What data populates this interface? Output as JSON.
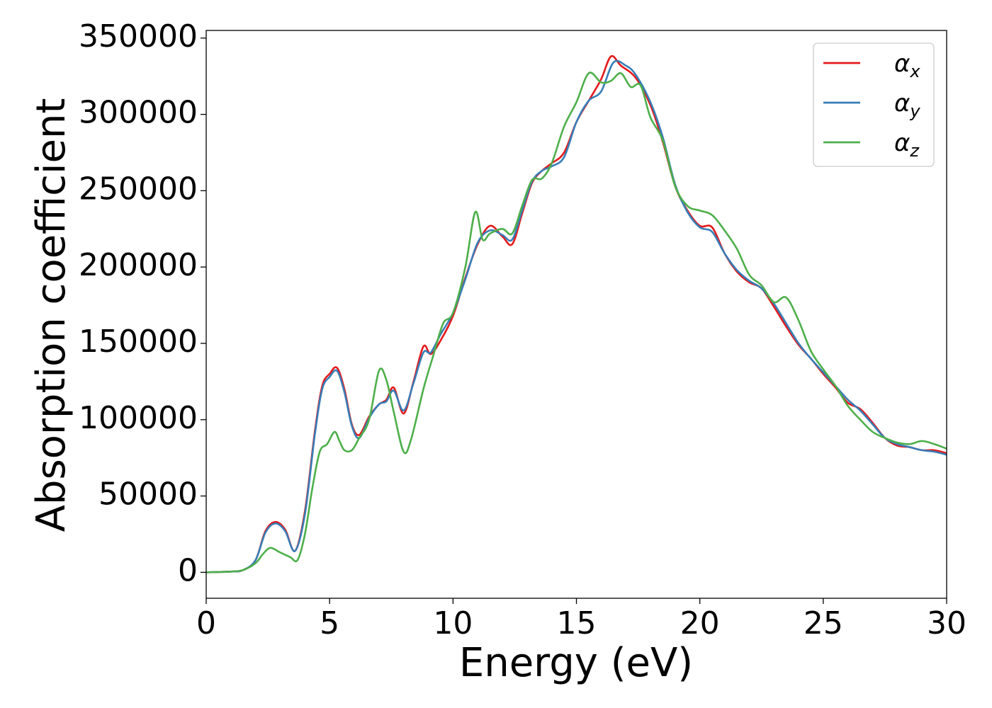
{
  "chart_data": {
    "type": "line",
    "title": "",
    "xlabel": "Energy (eV)",
    "ylabel": "Absorption coefficient",
    "xlim": [
      0,
      30
    ],
    "ylim": [
      -17000,
      355000
    ],
    "xticks": [
      0,
      5,
      10,
      15,
      20,
      25,
      30
    ],
    "xtick_labels": [
      "0",
      "5",
      "10",
      "15",
      "20",
      "25",
      "30"
    ],
    "yticks": [
      0,
      50000,
      100000,
      150000,
      200000,
      250000,
      300000,
      350000
    ],
    "ytick_labels": [
      "0",
      "50000",
      "100000",
      "150000",
      "200000",
      "250000",
      "300000",
      "350000"
    ],
    "grid": false,
    "legend_position": "top-right",
    "series": [
      {
        "name": "α_x",
        "legend_base": "α",
        "legend_sub": "x",
        "color": "#e41a1c",
        "x": [
          0,
          1,
          1.5,
          2,
          2.4,
          2.8,
          3.2,
          3.6,
          4.0,
          4.4,
          4.7,
          5.0,
          5.3,
          5.6,
          5.9,
          6.2,
          6.6,
          7.0,
          7.3,
          7.6,
          8.0,
          8.4,
          8.8,
          9.1,
          9.5,
          10.0,
          10.5,
          11.0,
          11.5,
          12.0,
          12.4,
          12.8,
          13.2,
          13.6,
          14.0,
          14.5,
          15.0,
          15.5,
          16.0,
          16.4,
          16.8,
          17.4,
          18.0,
          18.5,
          19.0,
          19.5,
          20.0,
          20.5,
          21.0,
          21.5,
          22.0,
          22.5,
          23.0,
          23.5,
          24.0,
          24.5,
          25.0,
          25.5,
          26.0,
          26.5,
          27.0,
          27.5,
          28.0,
          28.5,
          29.0,
          29.5,
          30.0
        ],
        "y": [
          0,
          500,
          1500,
          8000,
          27000,
          33000,
          28000,
          14000,
          40000,
          92000,
          122000,
          130000,
          134000,
          120000,
          97000,
          90000,
          102000,
          110000,
          113000,
          121000,
          104000,
          125000,
          148000,
          143000,
          152000,
          168000,
          193000,
          215000,
          227000,
          220000,
          215000,
          235000,
          255000,
          263000,
          268000,
          275000,
          295000,
          309000,
          323000,
          338000,
          332000,
          324000,
          306000,
          282000,
          253000,
          237000,
          227000,
          226000,
          209000,
          197000,
          190000,
          186000,
          174000,
          161000,
          149000,
          140000,
          130000,
          121000,
          111000,
          107000,
          98000,
          88000,
          83000,
          82000,
          80000,
          80000,
          78000
        ]
      },
      {
        "name": "α_y",
        "legend_base": "α",
        "legend_sub": "y",
        "color": "#377eb8",
        "x": [
          0,
          1,
          1.5,
          2,
          2.4,
          2.8,
          3.2,
          3.6,
          4.0,
          4.4,
          4.7,
          5.0,
          5.3,
          5.6,
          5.9,
          6.2,
          6.6,
          7.0,
          7.3,
          7.6,
          8.0,
          8.4,
          8.8,
          9.1,
          9.5,
          10.0,
          10.5,
          11.0,
          11.5,
          12.0,
          12.4,
          12.8,
          13.2,
          13.6,
          14.0,
          14.5,
          15.0,
          15.5,
          16.0,
          16.5,
          17.0,
          17.4,
          18.0,
          18.5,
          19.0,
          19.5,
          20.0,
          20.5,
          21.0,
          21.5,
          22.0,
          22.5,
          23.0,
          23.5,
          24.0,
          24.5,
          25.0,
          25.5,
          26.0,
          26.5,
          27.0,
          27.5,
          28.0,
          28.5,
          29.0,
          29.5,
          30.0
        ],
        "y": [
          0,
          500,
          1500,
          8000,
          26000,
          32000,
          27000,
          14000,
          38000,
          90000,
          120000,
          128000,
          132000,
          118000,
          96000,
          88000,
          101000,
          110000,
          112000,
          119000,
          106000,
          124000,
          144000,
          144000,
          156000,
          170000,
          192000,
          216000,
          224000,
          221000,
          218000,
          237000,
          256000,
          263000,
          266000,
          272000,
          295000,
          309000,
          315000,
          334000,
          332000,
          326000,
          308000,
          285000,
          254000,
          236000,
          226000,
          223000,
          209000,
          198000,
          191000,
          186000,
          176000,
          163000,
          150000,
          140000,
          131000,
          122000,
          113000,
          106000,
          97000,
          88000,
          84000,
          82000,
          80000,
          79000,
          77000
        ]
      },
      {
        "name": "α_z",
        "legend_base": "α",
        "legend_sub": "z",
        "color": "#4daf4a",
        "x": [
          0,
          1,
          1.5,
          2,
          2.3,
          2.6,
          3.0,
          3.4,
          3.7,
          4.0,
          4.3,
          4.6,
          4.9,
          5.2,
          5.4,
          5.6,
          5.9,
          6.2,
          6.6,
          7.0,
          7.3,
          7.6,
          8.0,
          8.3,
          8.8,
          9.2,
          9.6,
          10.0,
          10.5,
          10.9,
          11.2,
          11.5,
          12.0,
          12.4,
          12.8,
          13.2,
          13.6,
          14.0,
          14.5,
          15.0,
          15.5,
          16.0,
          16.4,
          16.8,
          17.2,
          17.6,
          18.0,
          18.5,
          19.0,
          19.5,
          20.0,
          20.5,
          21.0,
          21.5,
          22.0,
          22.5,
          23.0,
          23.5,
          24.0,
          24.5,
          25.0,
          25.5,
          26.0,
          26.5,
          27.0,
          27.5,
          28.0,
          28.5,
          29.0,
          29.5,
          30.0
        ],
        "y": [
          0,
          500,
          1500,
          6000,
          12000,
          16000,
          13000,
          10000,
          8000,
          25000,
          55000,
          79000,
          84000,
          92000,
          86000,
          80000,
          80000,
          88000,
          100000,
          132000,
          126000,
          105000,
          79000,
          87000,
          120000,
          142000,
          163000,
          170000,
          200000,
          236000,
          218000,
          222000,
          225000,
          222000,
          240000,
          257000,
          258000,
          268000,
          292000,
          308000,
          327000,
          321000,
          322000,
          327000,
          318000,
          319000,
          298000,
          283000,
          253000,
          240000,
          237000,
          234000,
          224000,
          212000,
          195000,
          188000,
          177000,
          180000,
          165000,
          145000,
          133000,
          122000,
          109000,
          100000,
          92000,
          88000,
          85000,
          84000,
          86000,
          84000,
          81000
        ]
      }
    ]
  }
}
